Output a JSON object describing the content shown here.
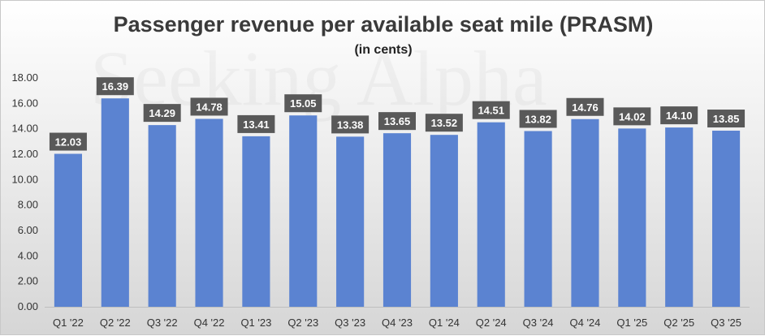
{
  "watermark": "Seeking Alpha",
  "chart_data": {
    "type": "bar",
    "title": "Passenger revenue per available seat mile (PRASM)",
    "subtitle": "(in cents)",
    "xlabel": "",
    "ylabel": "",
    "categories": [
      "Q1 '22",
      "Q2 '22",
      "Q3 '22",
      "Q4 '22",
      "Q1 '23",
      "Q2 '23",
      "Q3 '23",
      "Q4 '23",
      "Q1 '24",
      "Q2 '24",
      "Q3 '24",
      "Q4 '24",
      "Q1 '25",
      "Q2 '25",
      "Q3 '25"
    ],
    "values": [
      12.03,
      16.39,
      14.29,
      14.78,
      13.41,
      15.05,
      13.38,
      13.65,
      13.52,
      14.51,
      13.82,
      14.76,
      14.02,
      14.1,
      13.85
    ],
    "value_labels": [
      "12.03",
      "16.39",
      "14.29",
      "14.78",
      "13.41",
      "15.05",
      "13.38",
      "13.65",
      "13.52",
      "14.51",
      "13.82",
      "14.76",
      "14.02",
      "14.10",
      "13.85"
    ],
    "ylim": [
      0,
      18
    ],
    "yticks": [
      "0.00",
      "2.00",
      "4.00",
      "6.00",
      "8.00",
      "10.00",
      "12.00",
      "14.00",
      "16.00",
      "18.00"
    ],
    "grid": false,
    "legend": "none",
    "colors": {
      "bar": "#5b83d1",
      "label_box": "#595959",
      "label_text": "#ffffff"
    }
  }
}
